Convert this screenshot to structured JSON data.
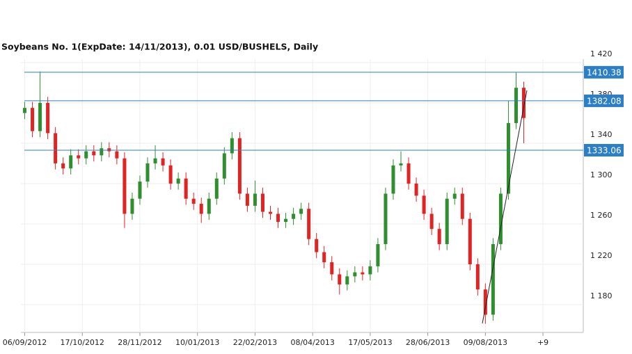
{
  "chart_data": {
    "type": "candlestick",
    "title": "Soybeans  No. 1(ExpDate: 14/11/2013), 0.01 USD/BUSHELS, Daily",
    "x": [
      0,
      4,
      8,
      12,
      16,
      20,
      24,
      28,
      32,
      36,
      40,
      44,
      48,
      52,
      56,
      60,
      64,
      68,
      72,
      76,
      80,
      84,
      88,
      92,
      96,
      100,
      104,
      108,
      112,
      116,
      120,
      124,
      128,
      132,
      136,
      140,
      144,
      148,
      152,
      156,
      160,
      164,
      168,
      172,
      176,
      180,
      184,
      188,
      192,
      196,
      200,
      204,
      208,
      212,
      216,
      220,
      224,
      228,
      232,
      236,
      240,
      244,
      248,
      252,
      256,
      260
    ],
    "open": [
      1370,
      1375,
      1352,
      1380,
      1350,
      1320,
      1315,
      1328,
      1325,
      1332,
      1328,
      1335,
      1332,
      1325,
      1270,
      1285,
      1302,
      1320,
      1325,
      1318,
      1300,
      1305,
      1285,
      1280,
      1270,
      1285,
      1305,
      1330,
      1345,
      1290,
      1278,
      1290,
      1272,
      1270,
      1262,
      1265,
      1270,
      1275,
      1245,
      1232,
      1222,
      1210,
      1200,
      1208,
      1212,
      1210,
      1218,
      1240,
      1290,
      1318,
      1320,
      1300,
      1288,
      1270,
      1255,
      1240,
      1285,
      1290,
      1265,
      1220,
      1195,
      1170,
      1240,
      1290,
      1360,
      1395
    ],
    "high": [
      1381,
      1381,
      1411,
      1386,
      1356,
      1326,
      1334,
      1334,
      1338,
      1338,
      1341,
      1341,
      1338,
      1331,
      1291,
      1308,
      1326,
      1338,
      1331,
      1324,
      1311,
      1311,
      1291,
      1286,
      1291,
      1311,
      1336,
      1351,
      1351,
      1296,
      1303,
      1296,
      1278,
      1276,
      1271,
      1276,
      1281,
      1281,
      1251,
      1238,
      1228,
      1216,
      1214,
      1218,
      1218,
      1224,
      1246,
      1296,
      1324,
      1332,
      1326,
      1306,
      1294,
      1276,
      1261,
      1291,
      1296,
      1296,
      1271,
      1226,
      1201,
      1246,
      1296,
      1382,
      1410,
      1401
    ],
    "low": [
      1364,
      1346,
      1346,
      1344,
      1314,
      1309,
      1309,
      1319,
      1319,
      1322,
      1322,
      1326,
      1319,
      1256,
      1264,
      1279,
      1296,
      1314,
      1312,
      1294,
      1294,
      1279,
      1274,
      1261,
      1264,
      1279,
      1299,
      1324,
      1284,
      1272,
      1272,
      1266,
      1264,
      1256,
      1256,
      1259,
      1264,
      1239,
      1226,
      1216,
      1204,
      1190,
      1194,
      1202,
      1204,
      1204,
      1212,
      1234,
      1284,
      1312,
      1294,
      1282,
      1264,
      1249,
      1234,
      1234,
      1279,
      1259,
      1214,
      1189,
      1161,
      1164,
      1234,
      1284,
      1354,
      1340
    ],
    "close": [
      1375,
      1352,
      1380,
      1350,
      1320,
      1315,
      1328,
      1325,
      1332,
      1328,
      1335,
      1332,
      1325,
      1270,
      1285,
      1302,
      1320,
      1325,
      1318,
      1300,
      1305,
      1285,
      1280,
      1270,
      1285,
      1305,
      1330,
      1345,
      1290,
      1278,
      1290,
      1272,
      1270,
      1262,
      1265,
      1270,
      1275,
      1245,
      1232,
      1222,
      1210,
      1200,
      1208,
      1212,
      1210,
      1218,
      1240,
      1290,
      1318,
      1320,
      1300,
      1288,
      1270,
      1255,
      1240,
      1285,
      1290,
      1265,
      1220,
      1195,
      1170,
      1240,
      1290,
      1360,
      1395,
      1365
    ],
    "up_color": "#2f8f2f",
    "down_color": "#e02424",
    "levels": [
      1410.38,
      1382.08,
      1333.06
    ],
    "level_color": "#2a7fc7",
    "xlim": [
      -2,
      291
    ],
    "ylim": [
      1152.4,
      1423.4
    ],
    "xticks": [
      {
        "value": 0,
        "label": "06/09/2012"
      },
      {
        "value": 30,
        "label": "17/10/2012"
      },
      {
        "value": 60,
        "label": "28/11/2012"
      },
      {
        "value": 90,
        "label": "10/01/2013"
      },
      {
        "value": 120,
        "label": "22/02/2013"
      },
      {
        "value": 150,
        "label": "08/04/2013"
      },
      {
        "value": 180,
        "label": "17/05/2013"
      },
      {
        "value": 210,
        "label": "28/06/2013"
      },
      {
        "value": 240,
        "label": "09/08/2013"
      },
      {
        "value": 270,
        "label": "+9"
      }
    ],
    "yticks": [
      {
        "value": 1180,
        "label": "1 180"
      },
      {
        "value": 1220,
        "label": "1 220"
      },
      {
        "value": 1260,
        "label": "1 260"
      },
      {
        "value": 1300,
        "label": "1 300"
      },
      {
        "value": 1340,
        "label": "1 340"
      },
      {
        "value": 1380,
        "label": "1 380"
      },
      {
        "value": 1420,
        "label": "1 420"
      }
    ],
    "grid": true
  }
}
